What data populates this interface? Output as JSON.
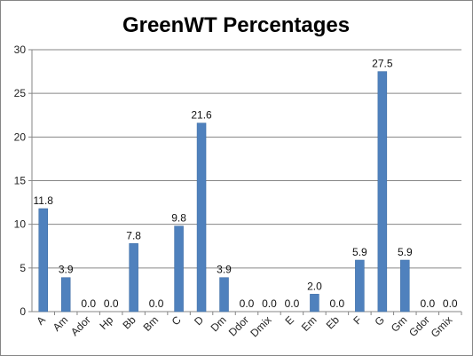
{
  "chart_data": {
    "type": "bar",
    "title": "GreenWT Percentages",
    "categories": [
      "A",
      "Am",
      "Ador",
      "Hp",
      "Bb",
      "Bm",
      "C",
      "D",
      "Dm",
      "Ddor",
      "Dmix",
      "E",
      "Em",
      "Eb",
      "F",
      "G",
      "Gm",
      "Gdor",
      "Gmix"
    ],
    "values": [
      11.8,
      3.9,
      0.0,
      0.0,
      7.8,
      0.0,
      9.8,
      21.6,
      3.9,
      0.0,
      0.0,
      0.0,
      2.0,
      0.0,
      5.9,
      27.5,
      5.9,
      0.0,
      0.0
    ],
    "data_labels": [
      "11.8",
      "3.9",
      "0.0",
      "0.0",
      "7.8",
      "0.0",
      "9.8",
      "21.6",
      "3.9",
      "0.0",
      "0.0",
      "0.0",
      "2.0",
      "0.0",
      "5.9",
      "27.5",
      "5.9",
      "0.0",
      "0.0"
    ],
    "ylim": [
      0,
      30
    ],
    "yticks": [
      0,
      5,
      10,
      15,
      20,
      25,
      30
    ],
    "grid": true,
    "bar_color": "#4f81bd",
    "bar_edge_color": "#3a6aa3",
    "grid_color": "#868686"
  }
}
